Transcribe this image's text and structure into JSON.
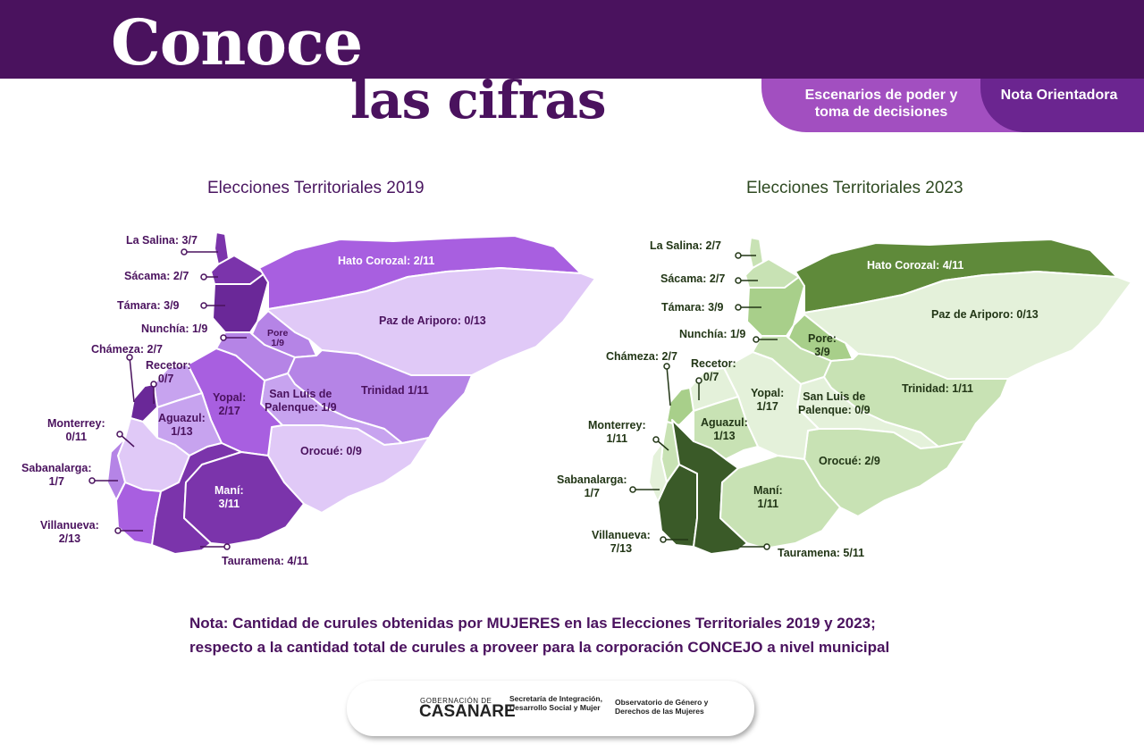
{
  "header": {
    "title_line1": "Conoce",
    "title_line2": "las cifras",
    "section": "Escenarios de poder y toma de decisiones",
    "doc_type": "Nota Orientadora"
  },
  "maps": [
    {
      "title": "Elecciones Territoriales 2019",
      "fill_color": "#a85fe0",
      "municipalities": [
        {
          "name": "La Salina",
          "value": "3/7"
        },
        {
          "name": "Sácama",
          "value": "2/7"
        },
        {
          "name": "Támara",
          "value": "3/9"
        },
        {
          "name": "Nunchía",
          "value": "1/9"
        },
        {
          "name": "Pore",
          "value": "1/9"
        },
        {
          "name": "Hato Corozal",
          "value": "2/11"
        },
        {
          "name": "Paz de Ariporo",
          "value": "0/13"
        },
        {
          "name": "Trinidad",
          "value": "1/11"
        },
        {
          "name": "San Luis de Palenque",
          "value": "1/9"
        },
        {
          "name": "Orocué",
          "value": "0/9"
        },
        {
          "name": "Yopal",
          "value": "2/17"
        },
        {
          "name": "Aguazul",
          "value": "1/13"
        },
        {
          "name": "Recetor",
          "value": "0/7"
        },
        {
          "name": "Chámeza",
          "value": "2/7"
        },
        {
          "name": "Monterrey",
          "value": "0/11"
        },
        {
          "name": "Sabanalarga",
          "value": "1/7"
        },
        {
          "name": "Villanueva",
          "value": "2/13"
        },
        {
          "name": "Tauramena",
          "value": "4/11"
        },
        {
          "name": "Maní",
          "value": "3/11"
        }
      ]
    },
    {
      "title": "Elecciones Territoriales 2023",
      "fill_color": "#5f8a3a",
      "municipalities": [
        {
          "name": "La Salina",
          "value": "2/7"
        },
        {
          "name": "Sácama",
          "value": "2/7"
        },
        {
          "name": "Támara",
          "value": "3/9"
        },
        {
          "name": "Nunchía",
          "value": "1/9"
        },
        {
          "name": "Pore",
          "value": "3/9"
        },
        {
          "name": "Hato Corozal",
          "value": "4/11"
        },
        {
          "name": "Paz de Ariporo",
          "value": "0/13"
        },
        {
          "name": "Trinidad",
          "value": "1/11"
        },
        {
          "name": "San Luis de Palenque",
          "value": "0/9"
        },
        {
          "name": "Orocué",
          "value": "2/9"
        },
        {
          "name": "Yopal",
          "value": "1/17"
        },
        {
          "name": "Aguazul",
          "value": "1/13"
        },
        {
          "name": "Recetor",
          "value": "0/7"
        },
        {
          "name": "Chámeza",
          "value": "2/7"
        },
        {
          "name": "Monterrey",
          "value": "1/11"
        },
        {
          "name": "Sabanalarga",
          "value": "1/7"
        },
        {
          "name": "Villanueva",
          "value": "7/13"
        },
        {
          "name": "Tauramena",
          "value": "5/11"
        },
        {
          "name": "Maní",
          "value": "1/11"
        }
      ]
    }
  ],
  "note": "Nota: Cantidad de curules obtenidas por MUJERES en las Elecciones Territoriales 2019 y 2023; respecto a la cantidad total de curules a proveer para la corporación CONCEJO a nivel municipal",
  "footer": {
    "gov_prefix": "GOBERNACIÓN DE",
    "gov_name": "CASANARE",
    "secretaria": "Secretaría de Integración, Desarrollo Social y Mujer",
    "observatorio": "Observatorio de Género y Derechos de las Mujeres"
  }
}
